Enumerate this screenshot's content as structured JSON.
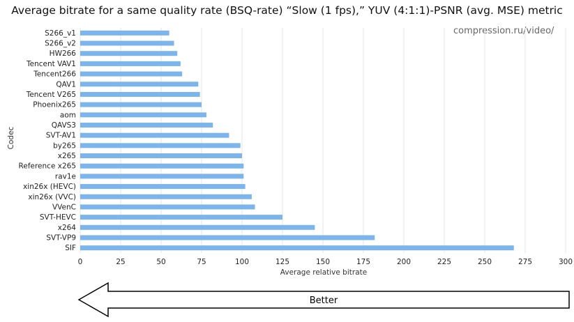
{
  "title": "Average bitrate for a same quality rate (BSQ-rate) “Slow (1 fps),” YUV (4:1:1)-PSNR (avg. MSE) metric",
  "watermark": "compression.ru/video/",
  "arrow_label": "Better",
  "colors": {
    "bar": "#7cb5ec",
    "grid": "#e6e6e6",
    "arrow_stroke": "#000000"
  },
  "chart_data": {
    "type": "bar",
    "orientation": "horizontal",
    "title": "Average bitrate for a same quality rate (BSQ-rate) “Slow (1 fps),” YUV (4:1:1)-PSNR (avg. MSE) metric",
    "xlabel": "Average relative bitrate",
    "ylabel": "Codec",
    "xlim": [
      0,
      300
    ],
    "xticks": [
      0,
      25,
      50,
      75,
      100,
      125,
      150,
      175,
      200,
      225,
      250,
      275,
      300
    ],
    "grid": true,
    "categories": [
      "S266_v1",
      "S266_v2",
      "HW266",
      "Tencent VAV1",
      "Tencent266",
      "QAV1",
      "Tencent V265",
      "Phoenix265",
      "aom",
      "QAVS3",
      "SVT-AV1",
      "by265",
      "x265",
      "Reference x265",
      "rav1e",
      "xin26x (HEVC)",
      "xin26x (VVC)",
      "VVenC",
      "SVT-HEVC",
      "x264",
      "SVT-VP9",
      "SIF"
    ],
    "values": [
      55,
      58,
      60,
      62,
      63,
      73,
      74,
      75,
      78,
      82,
      92,
      99,
      100,
      101,
      101,
      102,
      106,
      108,
      125,
      145,
      182,
      268
    ]
  }
}
